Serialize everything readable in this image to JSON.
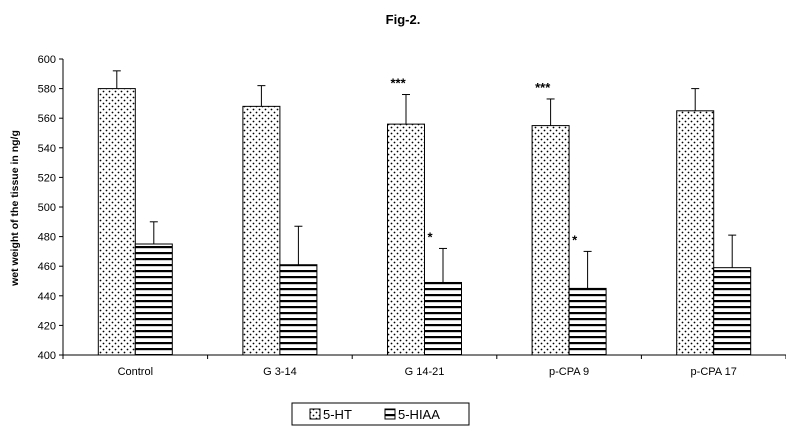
{
  "chart_data": {
    "type": "bar",
    "title": "Fig-2.",
    "ylabel": "wet weight of the tissue in ng/g",
    "xlabel": "",
    "categories": [
      "Control",
      "G 3-14",
      "G 14-21",
      "p-CPA 9",
      "p-CPA 17"
    ],
    "ylim": [
      400,
      600
    ],
    "yticks": [
      400,
      420,
      440,
      460,
      480,
      500,
      520,
      540,
      560,
      580,
      600
    ],
    "series": [
      {
        "name": "5-HT",
        "values": [
          580,
          568,
          556,
          555,
          565
        ],
        "error": [
          12,
          14,
          20,
          18,
          15
        ],
        "annotations": [
          "",
          "",
          "***",
          "***",
          ""
        ],
        "pattern": "dots"
      },
      {
        "name": "5-HIAA",
        "values": [
          475,
          461,
          449,
          445,
          459
        ],
        "error": [
          15,
          26,
          23,
          25,
          22
        ],
        "annotations": [
          "",
          "",
          "*",
          "*",
          ""
        ],
        "pattern": "horizontal-stripes"
      }
    ],
    "legend_position": "bottom-center",
    "grid": false
  }
}
